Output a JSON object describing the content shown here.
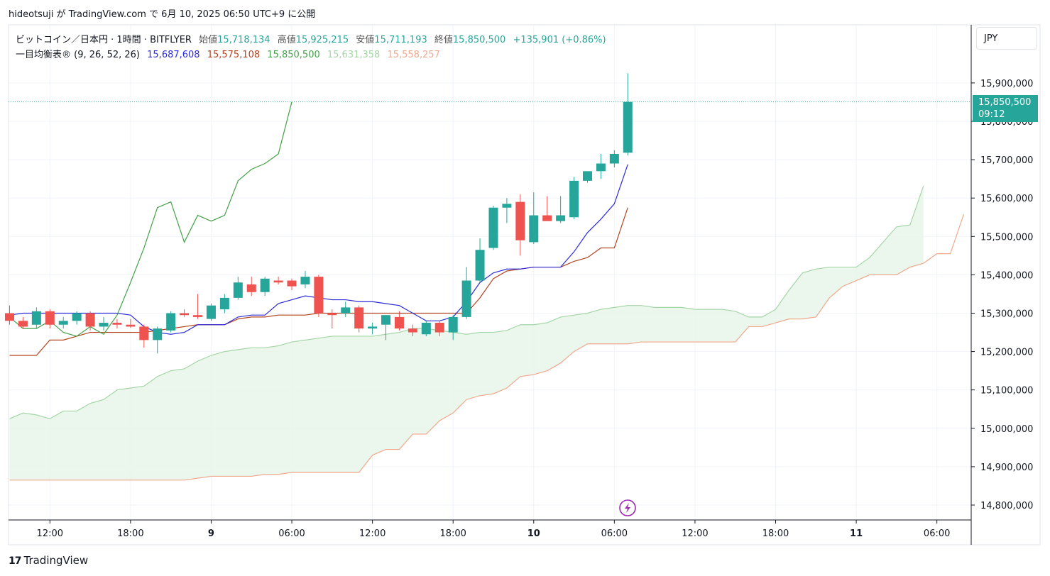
{
  "header": {
    "author": "hideotsuji",
    "text": "hideotsuji が TradingView.com で 6月 10, 2025 06:50 UTC+9 に公開"
  },
  "legend": {
    "symbol": "ビットコイン／日本円 · 1時間 · BITFLYER",
    "open_label": "始値",
    "open": "15,718,134",
    "high_label": "高値",
    "high": "15,925,215",
    "low_label": "安値",
    "low": "15,711,193",
    "close_label": "終値",
    "close": "15,850,500",
    "change": "+135,901 (+0.86%)",
    "indicator_name": "一目均衡表®",
    "indicator_params": "(9, 26, 52, 26)",
    "tenkan": "15,687,608",
    "kijun": "15,575,108",
    "chikou": "15,850,500",
    "senkou_a": "15,631,358",
    "senkou_b": "15,558,257"
  },
  "currency": "JPY",
  "last_price": {
    "price": "15,850,500",
    "countdown": "09:12"
  },
  "brand": "TradingView",
  "colors": {
    "up": "#26a69a",
    "down": "#ef5350",
    "tenkan": "#2b2bd9",
    "kijun": "#b3431e",
    "chikou": "#43a047",
    "senkou_a": "#a5d6a7",
    "senkou_b": "#f0a98c",
    "cloud": "#e8f5e9"
  },
  "chart_data": {
    "type": "candlestick",
    "timeframe": "1h",
    "y_ticks": [
      14800000,
      14900000,
      15000000,
      15100000,
      15200000,
      15300000,
      15400000,
      15500000,
      15600000,
      15700000,
      15800000,
      15900000
    ],
    "y_tick_labels": [
      "14,800,000",
      "14,900,000",
      "15,000,000",
      "15,100,000",
      "15,200,000",
      "15,300,000",
      "15,400,000",
      "15,500,000",
      "15,600,000",
      "15,700,000",
      "15,800,000",
      "15,900,000"
    ],
    "x_ticks": [
      {
        "i": 3,
        "label": "12:00"
      },
      {
        "i": 9,
        "label": "18:00"
      },
      {
        "i": 15,
        "label": "9"
      },
      {
        "i": 21,
        "label": "06:00"
      },
      {
        "i": 27,
        "label": "12:00"
      },
      {
        "i": 33,
        "label": "18:00"
      },
      {
        "i": 39,
        "label": "10"
      },
      {
        "i": 45,
        "label": "06:00"
      },
      {
        "i": 51,
        "label": "12:00"
      },
      {
        "i": 57,
        "label": "18:00"
      },
      {
        "i": 63,
        "label": "11"
      },
      {
        "i": 69,
        "label": "06:00"
      }
    ],
    "candles": [
      [
        15300000,
        15320000,
        15270000,
        15280000
      ],
      [
        15280000,
        15290000,
        15260000,
        15265000
      ],
      [
        15270000,
        15315000,
        15260000,
        15305000
      ],
      [
        15305000,
        15310000,
        15260000,
        15270000
      ],
      [
        15270000,
        15290000,
        15260000,
        15280000
      ],
      [
        15280000,
        15305000,
        15270000,
        15300000
      ],
      [
        15300000,
        15305000,
        15255000,
        15265000
      ],
      [
        15265000,
        15290000,
        15255000,
        15275000
      ],
      [
        15275000,
        15285000,
        15260000,
        15270000
      ],
      [
        15270000,
        15285000,
        15262000,
        15265000
      ],
      [
        15265000,
        15270000,
        15210000,
        15230000
      ],
      [
        15230000,
        15265000,
        15195000,
        15260000
      ],
      [
        15255000,
        15305000,
        15250000,
        15300000
      ],
      [
        15300000,
        15310000,
        15290000,
        15295000
      ],
      [
        15295000,
        15350000,
        15285000,
        15290000
      ],
      [
        15285000,
        15325000,
        15280000,
        15320000
      ],
      [
        15310000,
        15350000,
        15300000,
        15340000
      ],
      [
        15340000,
        15395000,
        15335000,
        15380000
      ],
      [
        15375000,
        15395000,
        15345000,
        15355000
      ],
      [
        15355000,
        15395000,
        15345000,
        15390000
      ],
      [
        15385000,
        15395000,
        15375000,
        15380000
      ],
      [
        15385000,
        15390000,
        15360000,
        15370000
      ],
      [
        15375000,
        15410000,
        15365000,
        15395000
      ],
      [
        15395000,
        15400000,
        15290000,
        15300000
      ],
      [
        15300000,
        15310000,
        15260000,
        15295000
      ],
      [
        15300000,
        15330000,
        15290000,
        15315000
      ],
      [
        15315000,
        15320000,
        15250000,
        15260000
      ],
      [
        15260000,
        15275000,
        15245000,
        15265000
      ],
      [
        15270000,
        15295000,
        15230000,
        15295000
      ],
      [
        15290000,
        15305000,
        15255000,
        15260000
      ],
      [
        15260000,
        15270000,
        15240000,
        15250000
      ],
      [
        15245000,
        15280000,
        15240000,
        15275000
      ],
      [
        15275000,
        15280000,
        15240000,
        15250000
      ],
      [
        15250000,
        15295000,
        15230000,
        15290000
      ],
      [
        15290000,
        15420000,
        15285000,
        15385000
      ],
      [
        15385000,
        15495000,
        15380000,
        15465000
      ],
      [
        15470000,
        15580000,
        15465000,
        15575000
      ],
      [
        15575000,
        15600000,
        15535000,
        15585000
      ],
      [
        15590000,
        15610000,
        15450000,
        15490000
      ],
      [
        15485000,
        15615000,
        15480000,
        15555000
      ],
      [
        15555000,
        15605000,
        15545000,
        15540000
      ],
      [
        15540000,
        15605000,
        15535000,
        15555000
      ],
      [
        15550000,
        15655000,
        15545000,
        15645000
      ],
      [
        15645000,
        15665000,
        15640000,
        15670000
      ],
      [
        15670000,
        15715000,
        15650000,
        15690000
      ],
      [
        15690000,
        15725000,
        15680000,
        15715000
      ],
      [
        15718134,
        15925215,
        15711193,
        15850500
      ]
    ],
    "tenkan": {
      "start": 0,
      "values": [
        15295000,
        15300000,
        15300000,
        15300000,
        15300000,
        15300000,
        15300000,
        15300000,
        15300000,
        15295000,
        15265000,
        15250000,
        15245000,
        15250000,
        15270000,
        15270000,
        15270000,
        15290000,
        15295000,
        15295000,
        15325000,
        15335000,
        15345000,
        15340000,
        15335000,
        15335000,
        15330000,
        15330000,
        15325000,
        15320000,
        15300000,
        15280000,
        15280000,
        15290000,
        15330000,
        15380000,
        15405000,
        15415000,
        15415000,
        15420000,
        15420000,
        15420000,
        15460000,
        15510000,
        15545000,
        15585000,
        15687608
      ]
    },
    "kijun": {
      "start": 0,
      "values": [
        15190000,
        15190000,
        15190000,
        15230000,
        15230000,
        15240000,
        15250000,
        15250000,
        15250000,
        15250000,
        15250000,
        15255000,
        15260000,
        15265000,
        15270000,
        15270000,
        15270000,
        15285000,
        15290000,
        15290000,
        15295000,
        15295000,
        15295000,
        15300000,
        15300000,
        15300000,
        15300000,
        15300000,
        15300000,
        15300000,
        15300000,
        15300000,
        15300000,
        15300000,
        15300000,
        15340000,
        15390000,
        15410000,
        15415000,
        15420000,
        15420000,
        15420000,
        15435000,
        15445000,
        15470000,
        15470000,
        15575108
      ]
    },
    "chikou": {
      "start": 0,
      "values": [
        15290000,
        15260000,
        15260000,
        15280000,
        15250000,
        15240000,
        15265000,
        15245000,
        15295000,
        15380000,
        15470000,
        15575000,
        15590000,
        15485000,
        15555000,
        15540000,
        15555000,
        15645000,
        15675000,
        15690000,
        15715000,
        15850500
      ]
    },
    "senkou_a": {
      "start": 0,
      "values": [
        15025000,
        15040000,
        15035000,
        15025000,
        15045000,
        15045000,
        15065000,
        15075000,
        15100000,
        15105000,
        15110000,
        15135000,
        15150000,
        15155000,
        15175000,
        15190000,
        15200000,
        15205000,
        15210000,
        15210000,
        15215000,
        15225000,
        15230000,
        15235000,
        15240000,
        15240000,
        15240000,
        15240000,
        15245000,
        15250000,
        15260000,
        15260000,
        15255000,
        15250000,
        15245000,
        15250000,
        15250000,
        15255000,
        15270000,
        15270000,
        15275000,
        15290000,
        15295000,
        15300000,
        15310000,
        15315000,
        15320000,
        15320000,
        15315000,
        15315000,
        15315000,
        15310000,
        15310000,
        15310000,
        15305000,
        15290000,
        15290000,
        15310000,
        15360000,
        15405000,
        15415000,
        15420000,
        15420000,
        15420000,
        15445000,
        15485000,
        15525000,
        15530000,
        15631358
      ]
    },
    "senkou_b": {
      "start": 0,
      "values": [
        14865000,
        14865000,
        14865000,
        14865000,
        14865000,
        14865000,
        14865000,
        14865000,
        14865000,
        14865000,
        14865000,
        14865000,
        14865000,
        14865000,
        14870000,
        14875000,
        14875000,
        14875000,
        14875000,
        14880000,
        14880000,
        14885000,
        14885000,
        14885000,
        14885000,
        14885000,
        14885000,
        14930000,
        14945000,
        14945000,
        14985000,
        14985000,
        15020000,
        15040000,
        15075000,
        15085000,
        15090000,
        15105000,
        15135000,
        15140000,
        15150000,
        15170000,
        15200000,
        15220000,
        15220000,
        15220000,
        15220000,
        15225000,
        15225000,
        15225000,
        15225000,
        15225000,
        15225000,
        15225000,
        15225000,
        15265000,
        15265000,
        15275000,
        15285000,
        15285000,
        15290000,
        15340000,
        15370000,
        15385000,
        15400000,
        15400000,
        15400000,
        15420000,
        15430000,
        15455000,
        15455000,
        15558257
      ]
    }
  }
}
